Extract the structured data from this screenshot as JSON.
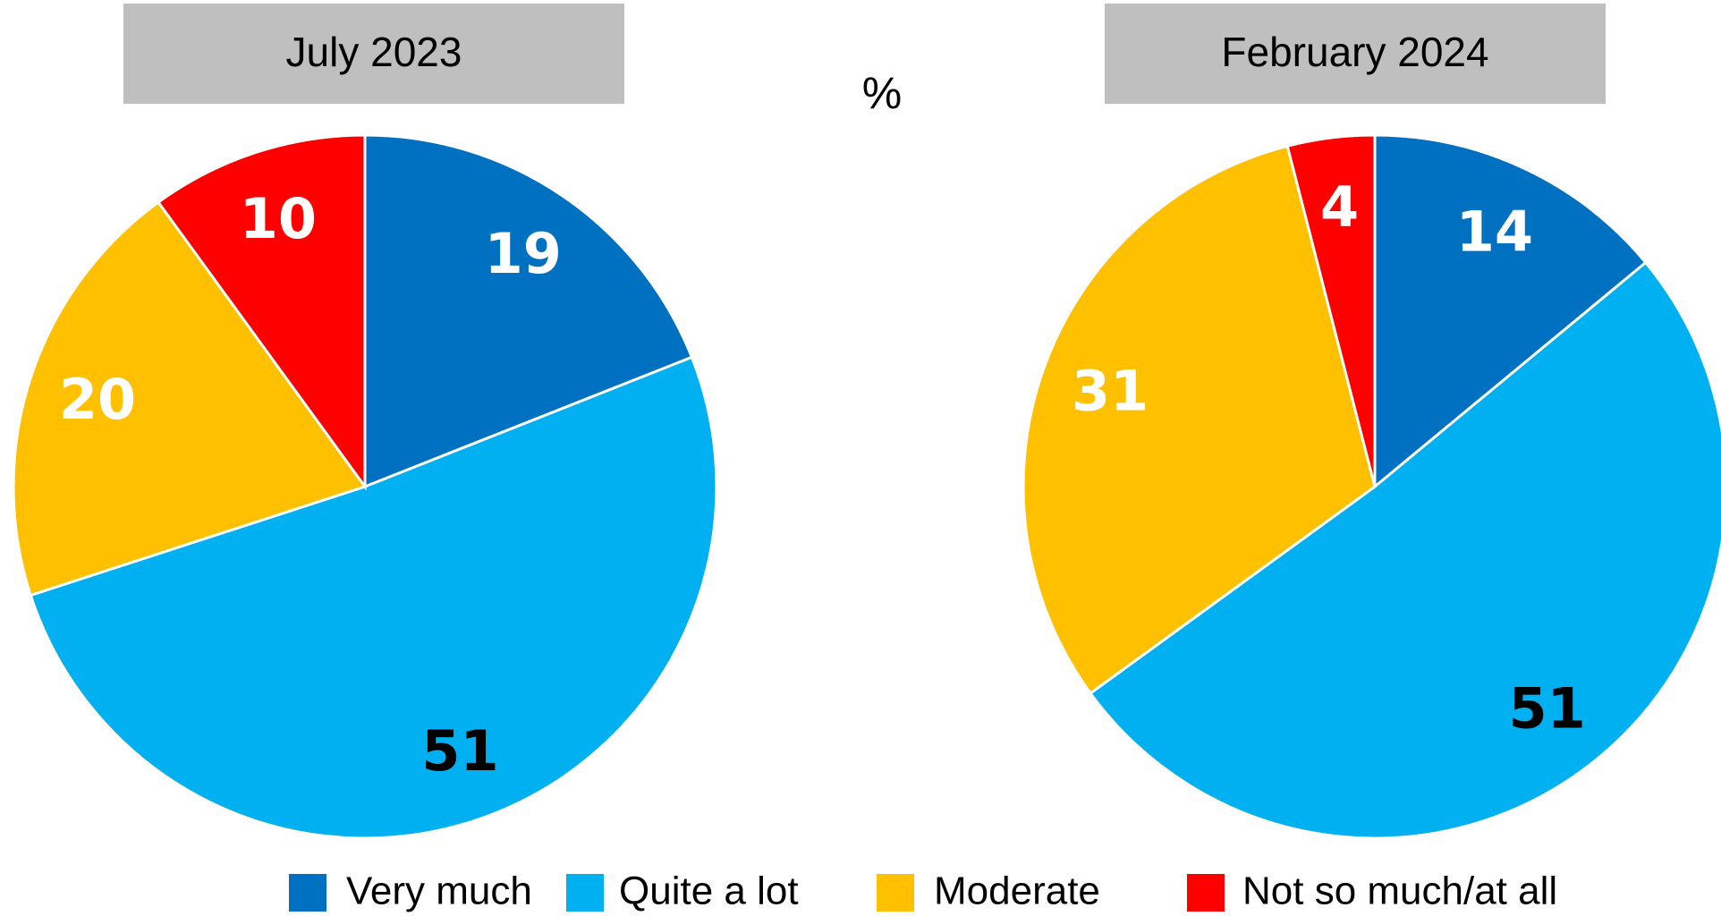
{
  "unit_label": "%",
  "chart_data": [
    {
      "type": "pie",
      "title": "July 2023",
      "categories": [
        "Very much",
        "Quite a lot",
        "Moderate",
        "Not so much/at all"
      ],
      "values": [
        19,
        51,
        20,
        10
      ],
      "colors": [
        "#0070c0",
        "#00b0f0",
        "#ffc000",
        "#ff0000"
      ],
      "label_colors": [
        "#ffffff",
        "#000000",
        "#ffffff",
        "#ffffff"
      ]
    },
    {
      "type": "pie",
      "title": "February 2024",
      "categories": [
        "Very much",
        "Quite a lot",
        "Moderate",
        "Not so much/at all"
      ],
      "values": [
        14,
        51,
        31,
        4
      ],
      "colors": [
        "#0070c0",
        "#00b0f0",
        "#ffc000",
        "#ff0000"
      ],
      "label_colors": [
        "#ffffff",
        "#000000",
        "#ffffff",
        "#ffffff"
      ]
    }
  ]
}
